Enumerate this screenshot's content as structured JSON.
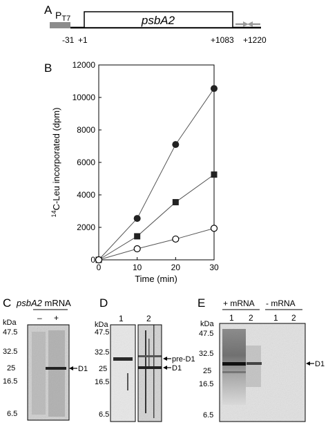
{
  "panels": {
    "a": "A",
    "b": "B",
    "c": "C",
    "d": "D",
    "e": "E"
  },
  "gene_map": {
    "promoter": "P",
    "promoter_sub": "T7",
    "gene": "psbA2",
    "coords": [
      "-31",
      "+1",
      "+1083",
      "+1220"
    ],
    "colors": {
      "promoter": "#8c8c8c",
      "arrows": "#9a9a9a"
    }
  },
  "chart_data": {
    "type": "line",
    "xlabel": "Time (min)",
    "ylabel_sup": "14",
    "ylabel": "C-Leu incorporated  (dpm)",
    "xlim": [
      0,
      30
    ],
    "ylim": [
      0,
      12000
    ],
    "xticks": [
      0,
      10,
      20,
      30
    ],
    "yticks": [
      0,
      2000,
      4000,
      6000,
      8000,
      10000,
      12000
    ],
    "series": [
      {
        "marker": "filled-circle",
        "x": [
          0,
          10,
          20,
          30
        ],
        "y": [
          0,
          2550,
          7100,
          10550
        ]
      },
      {
        "marker": "filled-square",
        "x": [
          0,
          10,
          20,
          30
        ],
        "y": [
          0,
          1450,
          3550,
          5250
        ]
      },
      {
        "marker": "open-circle",
        "x": [
          0,
          10,
          20,
          30
        ],
        "y": [
          0,
          680,
          1280,
          1940
        ]
      }
    ]
  },
  "gels": {
    "kda": "kDa",
    "markers": [
      "47.5",
      "32.5",
      "25",
      "16.5",
      "6.5"
    ],
    "c": {
      "title_gene": "psbA2",
      "title_rest": " mRNA",
      "lanes": [
        "–",
        "+"
      ],
      "bands": [
        "D1"
      ]
    },
    "d": {
      "lanes": [
        "1",
        "2"
      ],
      "bands": [
        "pre-D1",
        "D1"
      ]
    },
    "e": {
      "group1": "+ mRNA",
      "group2": "- mRNA",
      "lanes": [
        "1",
        "2",
        "1",
        "2"
      ],
      "bands": [
        "D1"
      ]
    }
  }
}
